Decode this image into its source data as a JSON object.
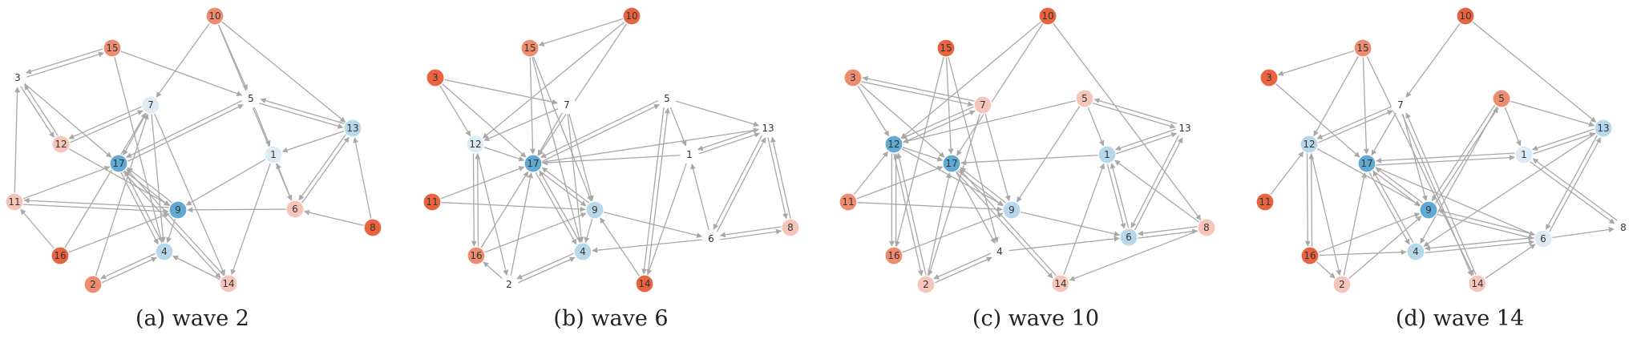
{
  "colors": {
    "edge": "#a8a8a8",
    "levels": {
      "r3": "#e8643e",
      "r2": "#ee8c70",
      "r1": "#f6c5b9",
      "n0": "#ffffff",
      "b1": "#dcebf4",
      "b2": "#b6d8ea",
      "b3": "#5fa9d2"
    }
  },
  "panels": [
    {
      "caption": "(a)  wave 2",
      "nodes": [
        {
          "label": "10",
          "level": "r2"
        },
        {
          "label": "15",
          "level": "r2"
        },
        {
          "label": "3",
          "level": "n0"
        },
        {
          "label": "7",
          "level": "b1"
        },
        {
          "label": "5",
          "level": "n0"
        },
        {
          "label": "13",
          "level": "b2"
        },
        {
          "label": "12",
          "level": "r1"
        },
        {
          "label": "17",
          "level": "b3"
        },
        {
          "label": "1",
          "level": "b1"
        },
        {
          "label": "11",
          "level": "r1"
        },
        {
          "label": "9",
          "level": "b3"
        },
        {
          "label": "6",
          "level": "r1"
        },
        {
          "label": "8",
          "level": "r3"
        },
        {
          "label": "16",
          "level": "r3"
        },
        {
          "label": "4",
          "level": "b2"
        },
        {
          "label": "2",
          "level": "r2"
        },
        {
          "label": "14",
          "level": "r1"
        }
      ]
    },
    {
      "caption": "(b)  wave 6",
      "nodes": [
        {
          "label": "10",
          "level": "r3"
        },
        {
          "label": "15",
          "level": "r2"
        },
        {
          "label": "3",
          "level": "r3"
        },
        {
          "label": "7",
          "level": "n0"
        },
        {
          "label": "5",
          "level": "n0"
        },
        {
          "label": "13",
          "level": "n0"
        },
        {
          "label": "12",
          "level": "b1"
        },
        {
          "label": "17",
          "level": "b3"
        },
        {
          "label": "1",
          "level": "n0"
        },
        {
          "label": "11",
          "level": "r3"
        },
        {
          "label": "9",
          "level": "b2"
        },
        {
          "label": "6",
          "level": "n0"
        },
        {
          "label": "8",
          "level": "r1"
        },
        {
          "label": "16",
          "level": "r2"
        },
        {
          "label": "4",
          "level": "b2"
        },
        {
          "label": "2",
          "level": "n0"
        },
        {
          "label": "14",
          "level": "r3"
        }
      ]
    },
    {
      "caption": "(c)  wave 10",
      "nodes": [
        {
          "label": "10",
          "level": "r3"
        },
        {
          "label": "15",
          "level": "r3"
        },
        {
          "label": "3",
          "level": "r2"
        },
        {
          "label": "7",
          "level": "r1"
        },
        {
          "label": "5",
          "level": "r1"
        },
        {
          "label": "13",
          "level": "n0"
        },
        {
          "label": "12",
          "level": "b3"
        },
        {
          "label": "17",
          "level": "b3"
        },
        {
          "label": "1",
          "level": "b2"
        },
        {
          "label": "11",
          "level": "r2"
        },
        {
          "label": "9",
          "level": "b2"
        },
        {
          "label": "6",
          "level": "b2"
        },
        {
          "label": "8",
          "level": "r1"
        },
        {
          "label": "16",
          "level": "r2"
        },
        {
          "label": "4",
          "level": "n0"
        },
        {
          "label": "2",
          "level": "r1"
        },
        {
          "label": "14",
          "level": "r1"
        }
      ]
    },
    {
      "caption": "(d)  wave 14",
      "nodes": [
        {
          "label": "10",
          "level": "r3"
        },
        {
          "label": "15",
          "level": "r2"
        },
        {
          "label": "3",
          "level": "r3"
        },
        {
          "label": "7",
          "level": "n0"
        },
        {
          "label": "5",
          "level": "r2"
        },
        {
          "label": "13",
          "level": "b2"
        },
        {
          "label": "12",
          "level": "b2"
        },
        {
          "label": "17",
          "level": "b3"
        },
        {
          "label": "1",
          "level": "b1"
        },
        {
          "label": "11",
          "level": "r3"
        },
        {
          "label": "9",
          "level": "b3"
        },
        {
          "label": "6",
          "level": "b1"
        },
        {
          "label": "8",
          "level": "n0"
        },
        {
          "label": "16",
          "level": "r3"
        },
        {
          "label": "4",
          "level": "b2"
        },
        {
          "label": "2",
          "level": "r1"
        },
        {
          "label": "14",
          "level": "r1"
        }
      ]
    }
  ]
}
